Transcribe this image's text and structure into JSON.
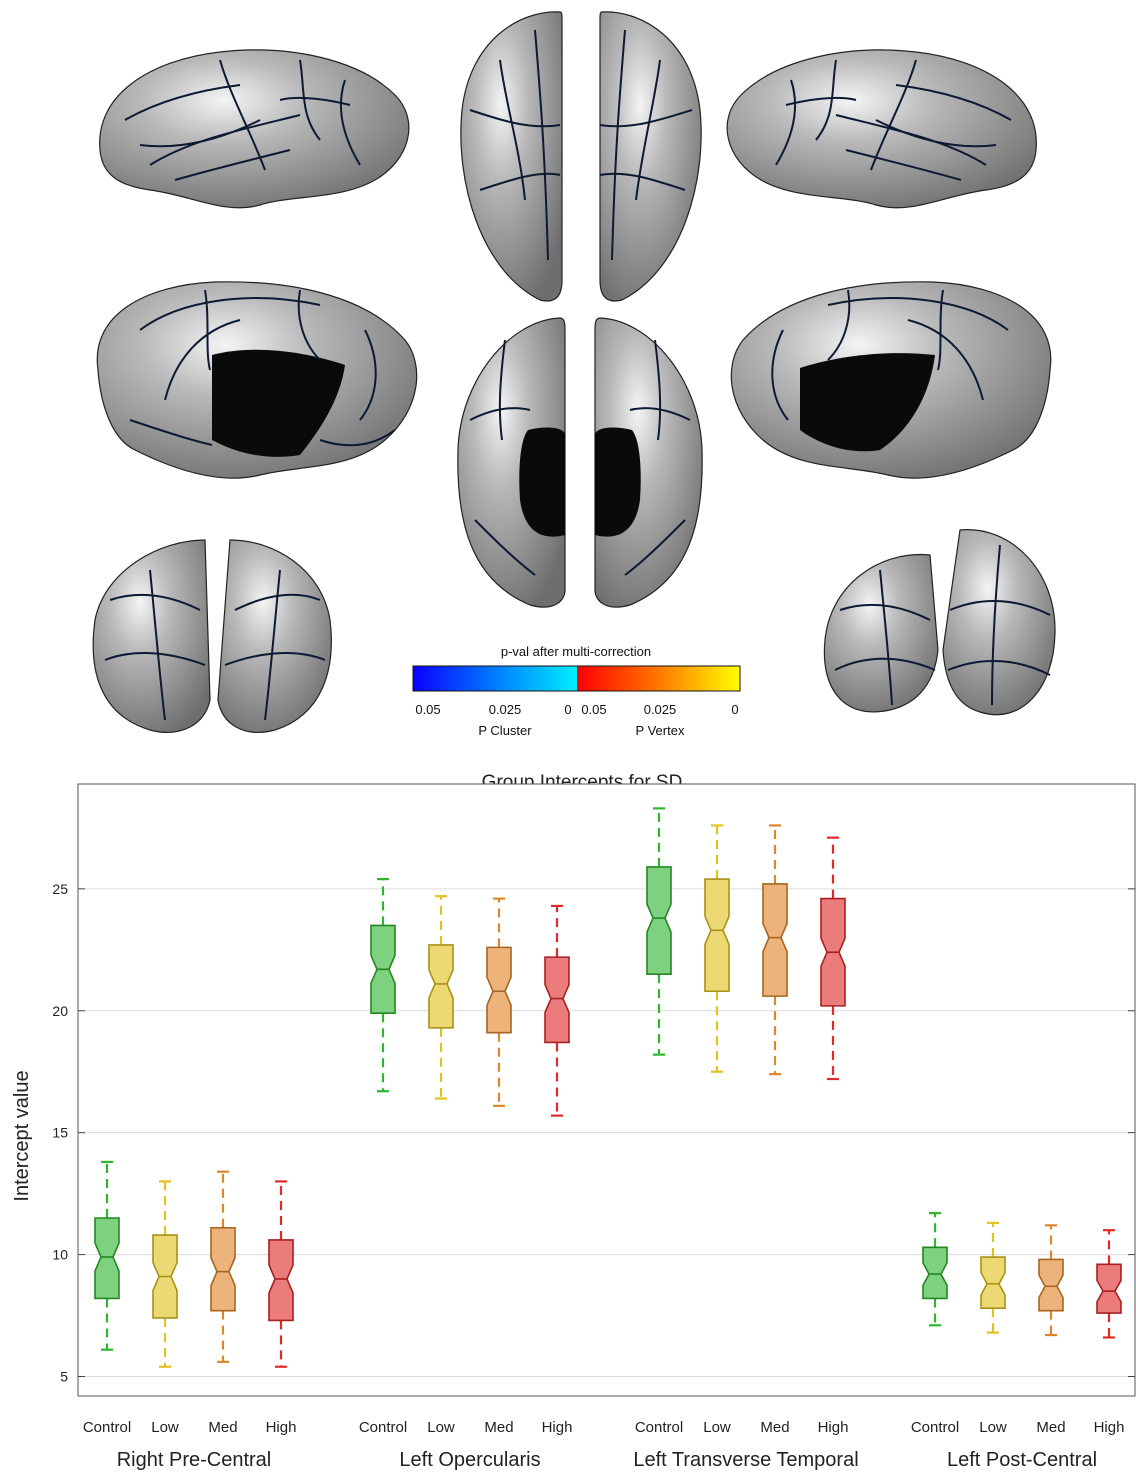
{
  "colorbar": {
    "title": "p-val after multi-correction",
    "cluster_ticks": [
      "0.05",
      "0.025",
      "0"
    ],
    "vertex_ticks": [
      "0.05",
      "0.025",
      "0"
    ],
    "cluster_label": "P Cluster",
    "vertex_label": "P Vertex",
    "cluster_colors": [
      "#0a00ff",
      "#00aaff",
      "#00eeff"
    ],
    "vertex_colors": [
      "#ff0000",
      "#ff7700",
      "#ffff00"
    ]
  },
  "brain": {
    "surface_color": "#a9a9a9",
    "boundary_color": "#0d1a33",
    "medial_wall_color": "#0a0a0a"
  },
  "chart_data": {
    "type": "boxplot",
    "title": "Group Intercepts for SD",
    "ylabel": "Intercept value",
    "ylim": [
      4.2,
      29.3
    ],
    "yticks": [
      "5",
      "10",
      "15",
      "20",
      "25"
    ],
    "grid": true,
    "group_colors": {
      "Control": "#2fb52f",
      "Low": "#e1c21f",
      "Med": "#e0862a",
      "High": "#e02a2a"
    },
    "regions": [
      {
        "name": "Right Pre-Central",
        "boxes": [
          {
            "group": "Control",
            "min": 6.1,
            "q1": 8.2,
            "median": 9.9,
            "q3": 11.5,
            "max": 13.8
          },
          {
            "group": "Low",
            "min": 5.4,
            "q1": 7.4,
            "median": 9.1,
            "q3": 10.8,
            "max": 13.0
          },
          {
            "group": "Med",
            "min": 5.6,
            "q1": 7.7,
            "median": 9.3,
            "q3": 11.1,
            "max": 13.4
          },
          {
            "group": "High",
            "min": 5.4,
            "q1": 7.3,
            "median": 9.0,
            "q3": 10.6,
            "max": 13.0
          }
        ]
      },
      {
        "name": "Left Opercularis",
        "boxes": [
          {
            "group": "Control",
            "min": 16.7,
            "q1": 19.9,
            "median": 21.7,
            "q3": 23.5,
            "max": 25.4
          },
          {
            "group": "Low",
            "min": 16.4,
            "q1": 19.3,
            "median": 21.1,
            "q3": 22.7,
            "max": 24.7
          },
          {
            "group": "Med",
            "min": 16.1,
            "q1": 19.1,
            "median": 20.8,
            "q3": 22.6,
            "max": 24.6
          },
          {
            "group": "High",
            "min": 15.7,
            "q1": 18.7,
            "median": 20.5,
            "q3": 22.2,
            "max": 24.3
          }
        ]
      },
      {
        "name": "Left Transverse Temporal",
        "boxes": [
          {
            "group": "Control",
            "min": 18.2,
            "q1": 21.5,
            "median": 23.8,
            "q3": 25.9,
            "max": 28.3
          },
          {
            "group": "Low",
            "min": 17.5,
            "q1": 20.8,
            "median": 23.3,
            "q3": 25.4,
            "max": 27.6
          },
          {
            "group": "Med",
            "min": 17.4,
            "q1": 20.6,
            "median": 23.0,
            "q3": 25.2,
            "max": 27.6
          },
          {
            "group": "High",
            "min": 17.2,
            "q1": 20.2,
            "median": 22.4,
            "q3": 24.6,
            "max": 27.1
          }
        ]
      },
      {
        "name": "Left Post-Central",
        "boxes": [
          {
            "group": "Control",
            "min": 7.1,
            "q1": 8.2,
            "median": 9.2,
            "q3": 10.3,
            "max": 11.7
          },
          {
            "group": "Low",
            "min": 6.8,
            "q1": 7.8,
            "median": 8.8,
            "q3": 9.9,
            "max": 11.3
          },
          {
            "group": "Med",
            "min": 6.7,
            "q1": 7.7,
            "median": 8.7,
            "q3": 9.8,
            "max": 11.2
          },
          {
            "group": "High",
            "min": 6.6,
            "q1": 7.6,
            "median": 8.5,
            "q3": 9.6,
            "max": 11.0
          }
        ]
      }
    ]
  }
}
